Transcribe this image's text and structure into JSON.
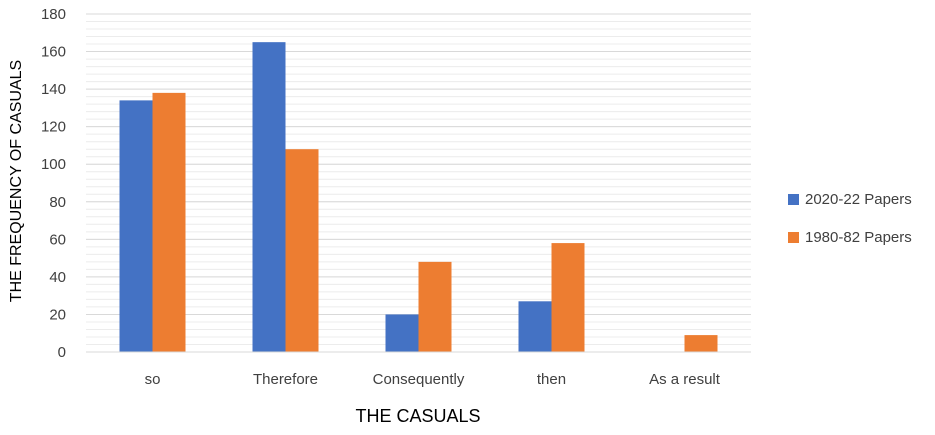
{
  "chart_data": {
    "type": "bar",
    "title": "",
    "xlabel": "THE CASUALS",
    "ylabel": "THE FREQUENCY OF CASUALS",
    "categories": [
      "so",
      "Therefore",
      "Consequently",
      "then",
      "As a result"
    ],
    "series": [
      {
        "name": "2020-22 Papers",
        "color": "#4472C4",
        "values": [
          134,
          165,
          20,
          27,
          0
        ]
      },
      {
        "name": "1980-82 Papers",
        "color": "#ED7D31",
        "values": [
          138,
          108,
          48,
          58,
          9
        ]
      }
    ],
    "ylim": [
      0,
      180
    ],
    "yticks": [
      0,
      20,
      40,
      60,
      80,
      100,
      120,
      140,
      160,
      180
    ],
    "grid": true,
    "minor_grid": true,
    "legend_position": "right"
  }
}
